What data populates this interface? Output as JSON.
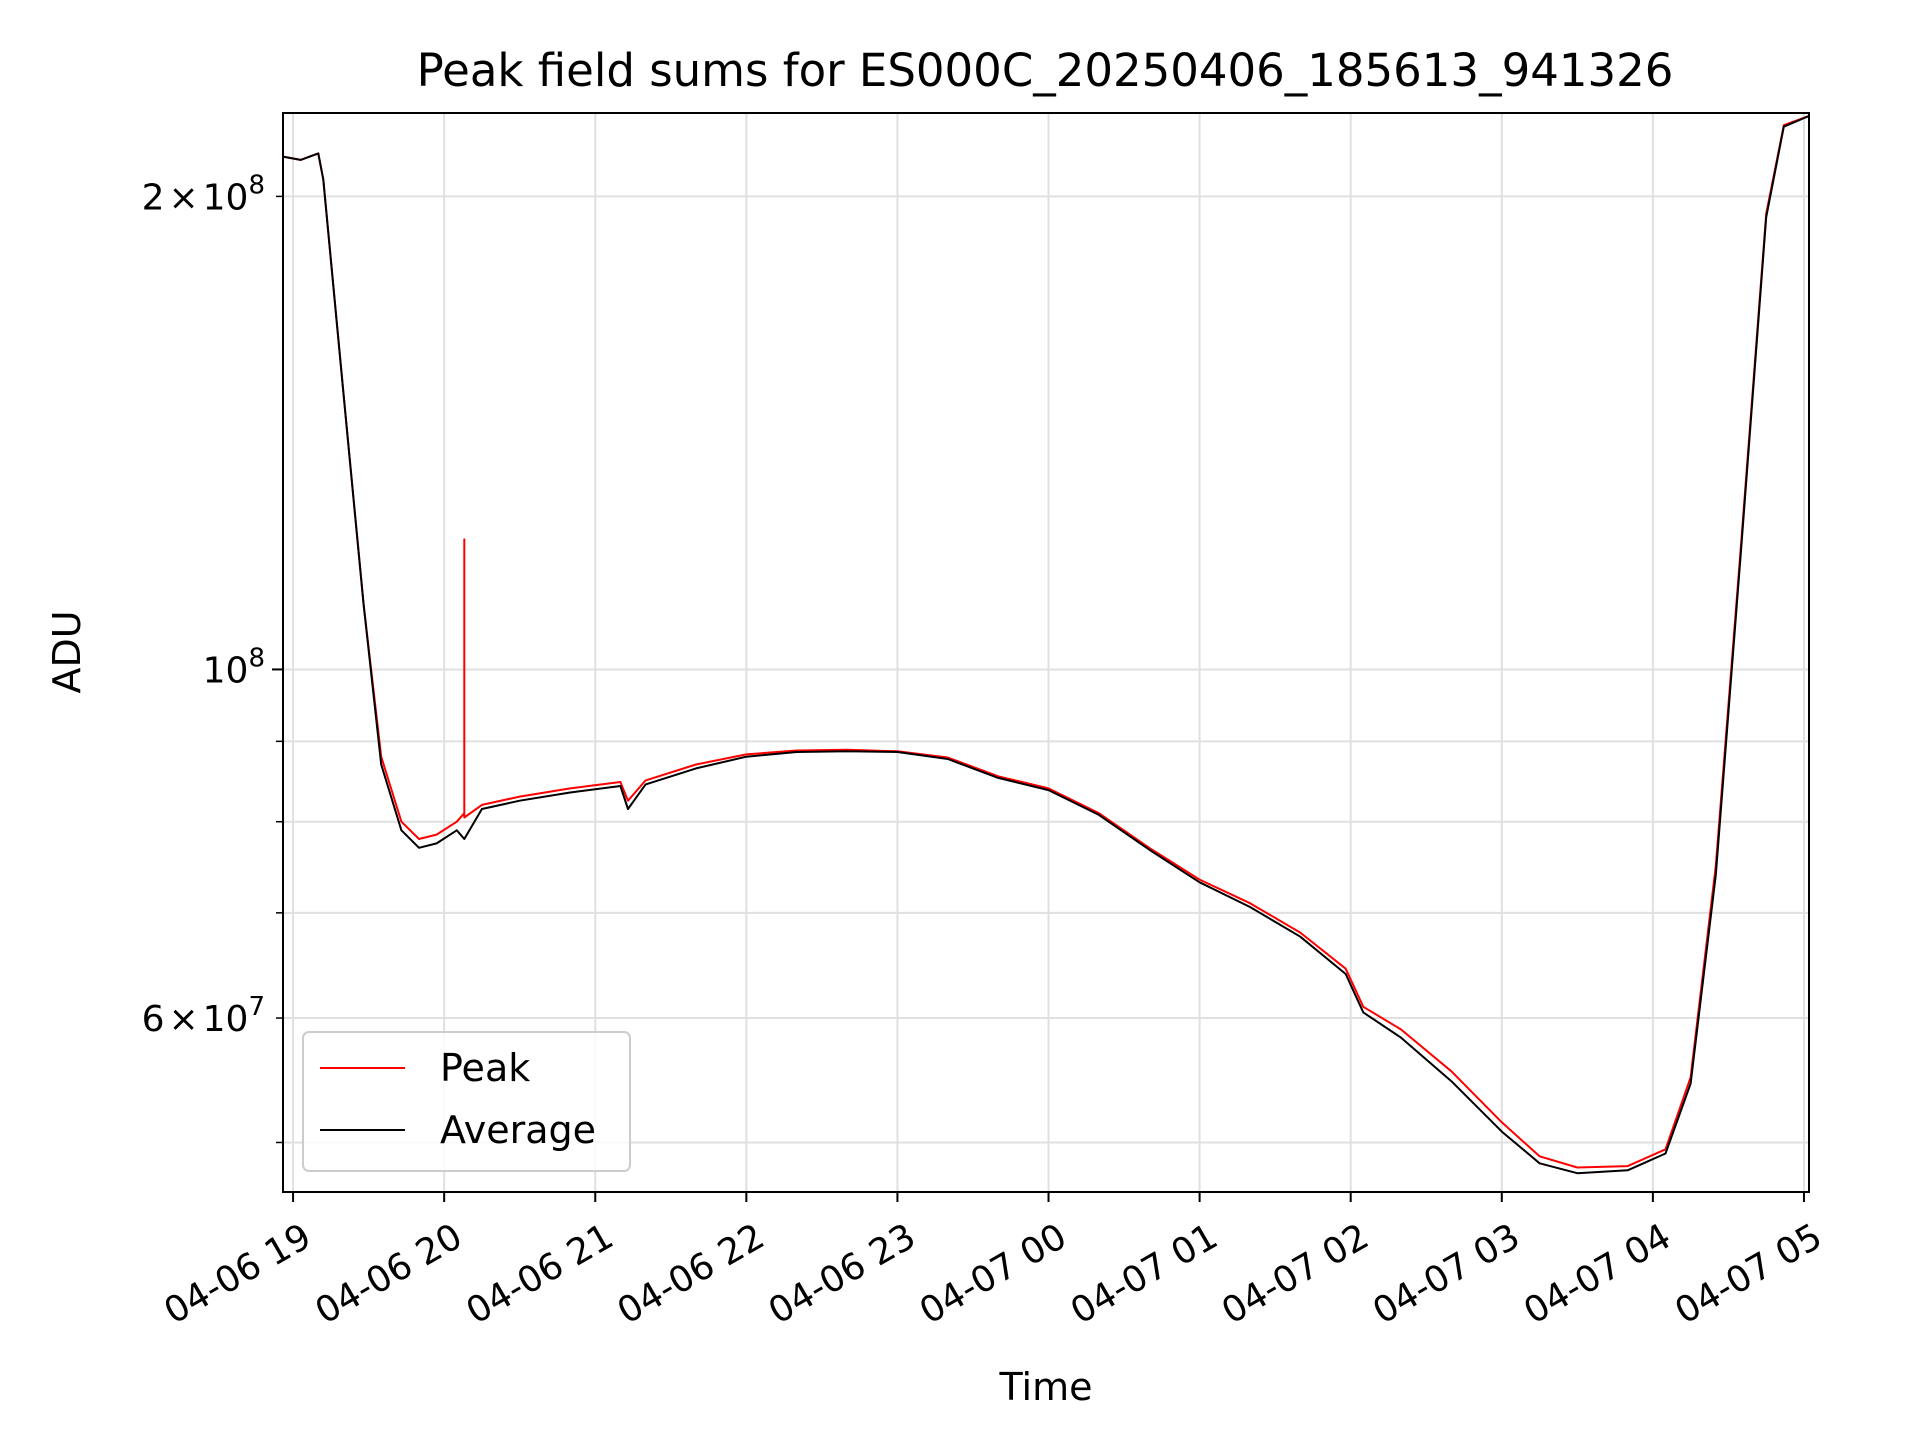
{
  "chart_data": {
    "type": "line",
    "title": "Peak field sums for ES000C_20250406_185613_941326",
    "xlabel": "Time",
    "ylabel": "ADU",
    "yscale": "log",
    "xlim": [
      "2025-04-06 18:56",
      "2025-04-07 05:02"
    ],
    "ylim": [
      46500000,
      226000000
    ],
    "grid": true,
    "legend_position": "lower-left",
    "x_ticks": [
      {
        "value": "2025-04-06 19:00",
        "label": "04-06 19"
      },
      {
        "value": "2025-04-06 20:00",
        "label": "04-06 20"
      },
      {
        "value": "2025-04-06 21:00",
        "label": "04-06 21"
      },
      {
        "value": "2025-04-06 22:00",
        "label": "04-06 22"
      },
      {
        "value": "2025-04-06 23:00",
        "label": "04-06 23"
      },
      {
        "value": "2025-04-07 00:00",
        "label": "04-07 00"
      },
      {
        "value": "2025-04-07 01:00",
        "label": "04-07 01"
      },
      {
        "value": "2025-04-07 02:00",
        "label": "04-07 02"
      },
      {
        "value": "2025-04-07 03:00",
        "label": "04-07 03"
      },
      {
        "value": "2025-04-07 04:00",
        "label": "04-07 04"
      },
      {
        "value": "2025-04-07 05:00",
        "label": "04-07 05"
      }
    ],
    "y_major_ticks": [
      {
        "value": 100000000,
        "base": "10",
        "exp": "8"
      }
    ],
    "y_minor_labeled_ticks": [
      {
        "value": 200000000,
        "mant": "2",
        "times": "×",
        "base": "10",
        "exp": "8"
      },
      {
        "value": 60000000,
        "mant": "6",
        "times": "×",
        "base": "10",
        "exp": "7"
      }
    ],
    "y_minor_ticks": [
      50000000,
      60000000,
      70000000,
      80000000,
      90000000,
      200000000
    ],
    "series": [
      {
        "name": "Peak",
        "color": "#ff0000",
        "points": [
          [
            "2025-04-06 18:56",
            212000000
          ],
          [
            "2025-04-06 19:03",
            211000000
          ],
          [
            "2025-04-06 19:10",
            213000000
          ],
          [
            "2025-04-06 19:12",
            205000000
          ],
          [
            "2025-04-06 19:20",
            150000000
          ],
          [
            "2025-04-06 19:28",
            110000000
          ],
          [
            "2025-04-06 19:35",
            88000000
          ],
          [
            "2025-04-06 19:43",
            80000000
          ],
          [
            "2025-04-06 19:50",
            78000000
          ],
          [
            "2025-04-06 19:57",
            78500000
          ],
          [
            "2025-04-06 20:05",
            80000000
          ],
          [
            "2025-04-06 20:08",
            81000000
          ],
          [
            "2025-04-06 20:08",
            121000000
          ],
          [
            "2025-04-06 20:08",
            80500000
          ],
          [
            "2025-04-06 20:15",
            82000000
          ],
          [
            "2025-04-06 20:30",
            83000000
          ],
          [
            "2025-04-06 20:50",
            84000000
          ],
          [
            "2025-04-06 21:10",
            84800000
          ],
          [
            "2025-04-06 21:13",
            82500000
          ],
          [
            "2025-04-06 21:20",
            85000000
          ],
          [
            "2025-04-06 21:40",
            87000000
          ],
          [
            "2025-04-06 22:00",
            88300000
          ],
          [
            "2025-04-06 22:20",
            88800000
          ],
          [
            "2025-04-06 22:40",
            88900000
          ],
          [
            "2025-04-06 23:00",
            88700000
          ],
          [
            "2025-04-06 23:20",
            87900000
          ],
          [
            "2025-04-06 23:40",
            85500000
          ],
          [
            "2025-04-07 00:00",
            84000000
          ],
          [
            "2025-04-07 00:20",
            81000000
          ],
          [
            "2025-04-07 00:40",
            77000000
          ],
          [
            "2025-04-07 01:00",
            73500000
          ],
          [
            "2025-04-07 01:20",
            71000000
          ],
          [
            "2025-04-07 01:40",
            68000000
          ],
          [
            "2025-04-07 01:58",
            64500000
          ],
          [
            "2025-04-07 02:05",
            61000000
          ],
          [
            "2025-04-07 02:20",
            59000000
          ],
          [
            "2025-04-07 02:40",
            55500000
          ],
          [
            "2025-04-07 03:00",
            51500000
          ],
          [
            "2025-04-07 03:15",
            49000000
          ],
          [
            "2025-04-07 03:30",
            48200000
          ],
          [
            "2025-04-07 03:50",
            48300000
          ],
          [
            "2025-04-07 04:05",
            49500000
          ],
          [
            "2025-04-07 04:15",
            55000000
          ],
          [
            "2025-04-07 04:25",
            75000000
          ],
          [
            "2025-04-07 04:35",
            120000000
          ],
          [
            "2025-04-07 04:45",
            195000000
          ],
          [
            "2025-04-07 04:52",
            222000000
          ],
          [
            "2025-04-07 05:02",
            225000000
          ]
        ]
      },
      {
        "name": "Average",
        "color": "#000000",
        "points": [
          [
            "2025-04-06 18:56",
            212000000
          ],
          [
            "2025-04-06 19:03",
            211000000
          ],
          [
            "2025-04-06 19:10",
            213000000
          ],
          [
            "2025-04-06 19:12",
            205000000
          ],
          [
            "2025-04-06 19:20",
            150000000
          ],
          [
            "2025-04-06 19:28",
            110000000
          ],
          [
            "2025-04-06 19:35",
            87000000
          ],
          [
            "2025-04-06 19:43",
            79000000
          ],
          [
            "2025-04-06 19:50",
            77000000
          ],
          [
            "2025-04-06 19:57",
            77500000
          ],
          [
            "2025-04-06 20:05",
            79000000
          ],
          [
            "2025-04-06 20:08",
            78000000
          ],
          [
            "2025-04-06 20:15",
            81500000
          ],
          [
            "2025-04-06 20:30",
            82500000
          ],
          [
            "2025-04-06 20:50",
            83500000
          ],
          [
            "2025-04-06 21:10",
            84300000
          ],
          [
            "2025-04-06 21:13",
            81500000
          ],
          [
            "2025-04-06 21:20",
            84500000
          ],
          [
            "2025-04-06 21:40",
            86500000
          ],
          [
            "2025-04-06 22:00",
            88000000
          ],
          [
            "2025-04-06 22:20",
            88600000
          ],
          [
            "2025-04-06 22:40",
            88700000
          ],
          [
            "2025-04-06 23:00",
            88600000
          ],
          [
            "2025-04-06 23:20",
            87700000
          ],
          [
            "2025-04-06 23:40",
            85300000
          ],
          [
            "2025-04-07 00:00",
            83800000
          ],
          [
            "2025-04-07 00:20",
            80800000
          ],
          [
            "2025-04-07 00:40",
            76800000
          ],
          [
            "2025-04-07 01:00",
            73200000
          ],
          [
            "2025-04-07 01:20",
            70600000
          ],
          [
            "2025-04-07 01:40",
            67600000
          ],
          [
            "2025-04-07 01:58",
            64000000
          ],
          [
            "2025-04-07 02:05",
            60500000
          ],
          [
            "2025-04-07 02:20",
            58300000
          ],
          [
            "2025-04-07 02:40",
            54700000
          ],
          [
            "2025-04-07 03:00",
            50800000
          ],
          [
            "2025-04-07 03:15",
            48500000
          ],
          [
            "2025-04-07 03:30",
            47800000
          ],
          [
            "2025-04-07 03:50",
            48000000
          ],
          [
            "2025-04-07 04:05",
            49200000
          ],
          [
            "2025-04-07 04:15",
            54500000
          ],
          [
            "2025-04-07 04:25",
            74000000
          ],
          [
            "2025-04-07 04:35",
            119000000
          ],
          [
            "2025-04-07 04:45",
            194000000
          ],
          [
            "2025-04-07 04:52",
            221500000
          ],
          [
            "2025-04-07 05:02",
            225000000
          ]
        ]
      }
    ]
  }
}
